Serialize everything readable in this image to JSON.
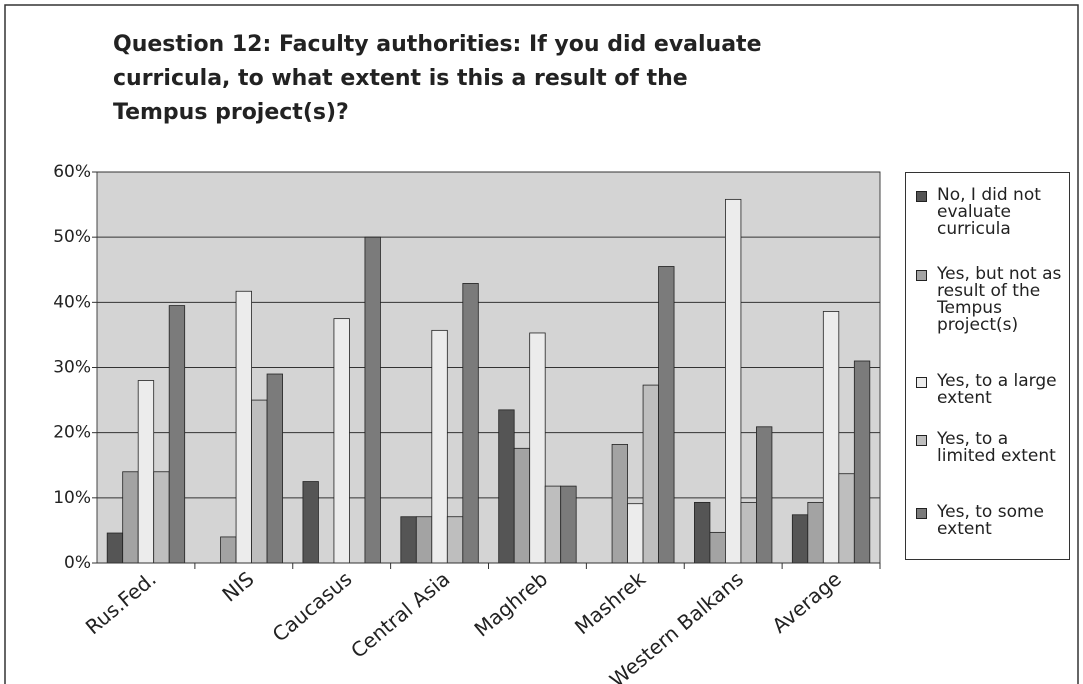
{
  "chart_data": {
    "type": "bar",
    "title": "Question 12: Faculty authorities: If you did evaluate curricula, to what extent is this a result of the Tempus project(s)?",
    "categories": [
      "Rus.Fed.",
      "NIS",
      "Caucasus",
      "Central Asia",
      "Maghreb",
      "Mashrek",
      "Western Balkans",
      "Average"
    ],
    "series": [
      {
        "name": "No, I did not evaluate curricula",
        "color": "#555555",
        "values": [
          4.6,
          0,
          12.5,
          7.1,
          23.5,
          0,
          9.3,
          7.4
        ]
      },
      {
        "name": "Yes, but not as result of the Tempus project(s)",
        "color": "#a3a3a3",
        "values": [
          14,
          4,
          0,
          7.1,
          17.6,
          18.2,
          4.7,
          9.3
        ]
      },
      {
        "name": "Yes, to a large extent",
        "color": "#ececec",
        "values": [
          28,
          41.7,
          37.5,
          35.7,
          35.3,
          9.1,
          55.8,
          38.6
        ]
      },
      {
        "name": "Yes, to a limited extent",
        "color": "#bebebe",
        "values": [
          14,
          25,
          0,
          7.1,
          11.8,
          27.3,
          9.3,
          13.7
        ]
      },
      {
        "name": "Yes, to some extent",
        "color": "#7b7b7b",
        "values": [
          39.5,
          29,
          50,
          42.9,
          11.8,
          45.5,
          20.9,
          31
        ]
      }
    ],
    "ylim": [
      0,
      60
    ],
    "yticks": [
      {
        "value": 0,
        "label": "0%"
      },
      {
        "value": 10,
        "label": "10%"
      },
      {
        "value": 20,
        "label": "20%"
      },
      {
        "value": 30,
        "label": "30%"
      },
      {
        "value": 40,
        "label": "40%"
      },
      {
        "value": 50,
        "label": "50%"
      },
      {
        "value": 60,
        "label": "60%"
      }
    ],
    "grid": true,
    "legend": "right"
  }
}
